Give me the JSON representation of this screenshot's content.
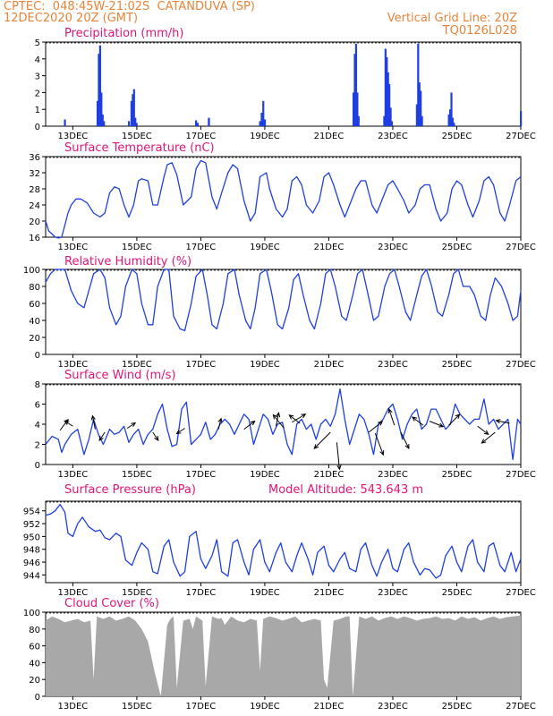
{
  "colors": {
    "header": "#e8843a",
    "panel_title": "#e0157a",
    "series": "#1f3fe0",
    "cloud": "#a8a8a8",
    "axis": "#000000"
  },
  "header": {
    "line1": "CPTEC:  048:45W-21:02S  CATANDUVA (SP)",
    "line2": "12DEC2020 20Z (GMT)",
    "right1": "Vertical Grid Line: 20Z",
    "right2": "TQ0126L028"
  },
  "x_ticks": [
    "13DEC",
    "15DEC",
    "17DEC",
    "19DEC",
    "21DEC",
    "23DEC",
    "25DEC",
    "27DEC"
  ],
  "chart_data": [
    {
      "type": "bar",
      "title": "Precipitation (mm/h)",
      "ylim": [
        0,
        5
      ],
      "yticks": [
        0,
        1,
        2,
        3,
        4,
        5
      ],
      "x_unit": "days since 12DEC 20Z",
      "bars": [
        [
          0.6,
          0.4
        ],
        [
          1.62,
          1.5
        ],
        [
          1.66,
          4.3
        ],
        [
          1.7,
          4.8
        ],
        [
          1.74,
          2.0
        ],
        [
          1.78,
          0.7
        ],
        [
          1.82,
          0.3
        ],
        [
          2.6,
          0.3
        ],
        [
          2.68,
          1.5
        ],
        [
          2.72,
          1.9
        ],
        [
          2.76,
          2.2
        ],
        [
          2.8,
          0.5
        ],
        [
          2.84,
          0.2
        ],
        [
          4.7,
          0.35
        ],
        [
          4.75,
          0.2
        ],
        [
          5.1,
          0.4
        ],
        [
          5.1,
          0.5
        ],
        [
          6.7,
          0.3
        ],
        [
          6.75,
          0.8
        ],
        [
          6.8,
          1.5
        ],
        [
          6.85,
          0.4
        ],
        [
          9.62,
          2.0
        ],
        [
          9.66,
          4.3
        ],
        [
          9.7,
          4.9
        ],
        [
          9.74,
          2.0
        ],
        [
          9.78,
          0.6
        ],
        [
          10.58,
          0.6
        ],
        [
          10.62,
          4.6
        ],
        [
          10.66,
          4.1
        ],
        [
          10.7,
          3.2
        ],
        [
          10.74,
          2.5
        ],
        [
          10.78,
          1.1
        ],
        [
          10.82,
          0.3
        ],
        [
          11.6,
          1.3
        ],
        [
          11.64,
          4.9
        ],
        [
          11.68,
          2.6
        ],
        [
          11.72,
          2.1
        ],
        [
          11.76,
          0.6
        ],
        [
          12.6,
          0.7
        ],
        [
          12.64,
          1.0
        ],
        [
          12.68,
          2.0
        ],
        [
          12.72,
          0.5
        ],
        [
          12.76,
          0.2
        ],
        [
          14.85,
          0.9
        ]
      ]
    },
    {
      "type": "line",
      "title": "Surface Temperature (nC)",
      "ylim": [
        16,
        36
      ],
      "yticks": [
        16,
        20,
        24,
        28,
        32,
        36
      ],
      "x_unit": "days since 12DEC 20Z",
      "x": [
        0,
        0.1,
        0.2,
        0.3,
        0.4,
        0.5,
        0.6,
        0.7,
        0.8,
        0.95,
        1.1,
        1.3,
        1.5,
        1.7,
        1.85,
        2.0,
        2.15,
        2.3,
        2.45,
        2.6,
        2.75,
        2.9,
        3.0,
        3.2,
        3.35,
        3.5,
        3.7,
        3.8,
        3.95,
        4.1,
        4.3,
        4.55,
        4.7,
        4.85,
        5.0,
        5.2,
        5.35,
        5.5,
        5.7,
        5.85,
        6.0,
        6.2,
        6.4,
        6.55,
        6.7,
        6.9,
        7.0,
        7.2,
        7.4,
        7.55,
        7.7,
        7.85,
        8.0,
        8.15,
        8.35,
        8.55,
        8.7,
        8.85,
        9.0,
        9.2,
        9.35,
        9.5,
        9.7,
        9.85,
        10.0,
        10.2,
        10.35,
        10.5,
        10.7,
        10.85,
        11.0,
        11.2,
        11.35,
        11.55,
        11.7,
        11.85,
        12.0,
        12.2,
        12.35,
        12.55,
        12.7,
        12.85,
        13.0,
        13.2,
        13.35,
        13.55,
        13.7,
        13.85,
        14.0,
        14.2,
        14.35,
        14.5,
        14.7,
        14.85
      ],
      "y": [
        20,
        17.5,
        16.8,
        16,
        15.8,
        16,
        19,
        22,
        24,
        25.5,
        25.5,
        24.5,
        22,
        21,
        22,
        27,
        28.5,
        28,
        24,
        21,
        24,
        30,
        30.5,
        30,
        24,
        24,
        31,
        34,
        34.5,
        31.5,
        24,
        26,
        33,
        35,
        34.5,
        26,
        23,
        27,
        32,
        34,
        33,
        25,
        20,
        22,
        31,
        32,
        28,
        23,
        21,
        23,
        30,
        31,
        29,
        24,
        22,
        25,
        31,
        32,
        29,
        24,
        21,
        24,
        28,
        30,
        30,
        24,
        22,
        25,
        29,
        30,
        28,
        25,
        22,
        24,
        28,
        29,
        29,
        23,
        20,
        22,
        28,
        30,
        29,
        24,
        21,
        25,
        30,
        31,
        29,
        22,
        20,
        24,
        30,
        31
      ]
    },
    {
      "type": "line",
      "title": "Relative Humidity (%)",
      "ylim": [
        0,
        100
      ],
      "yticks": [
        0,
        20,
        40,
        60,
        80,
        100
      ],
      "x_unit": "days since 12DEC 20Z",
      "x": [
        0,
        0.15,
        0.3,
        0.45,
        0.6,
        0.8,
        1.0,
        1.2,
        1.35,
        1.5,
        1.7,
        1.85,
        2.0,
        2.2,
        2.35,
        2.5,
        2.7,
        2.85,
        3.0,
        3.2,
        3.35,
        3.5,
        3.7,
        3.85,
        4.0,
        4.2,
        4.35,
        4.55,
        4.7,
        4.9,
        5.05,
        5.2,
        5.35,
        5.55,
        5.7,
        5.9,
        6.05,
        6.25,
        6.4,
        6.55,
        6.7,
        6.9,
        7.05,
        7.25,
        7.4,
        7.6,
        7.75,
        7.9,
        8.05,
        8.25,
        8.4,
        8.6,
        8.75,
        8.9,
        9.05,
        9.25,
        9.4,
        9.6,
        9.75,
        9.9,
        10.05,
        10.25,
        10.4,
        10.6,
        10.75,
        10.9,
        11.05,
        11.25,
        11.4,
        11.6,
        11.75,
        11.9,
        12.05,
        12.25,
        12.4,
        12.6,
        12.75,
        12.9,
        13.05,
        13.25,
        13.4,
        13.6,
        13.75,
        13.9,
        14.05,
        14.25,
        14.45,
        14.6,
        14.75,
        14.85
      ],
      "y": [
        85,
        95,
        100,
        100,
        100,
        75,
        60,
        55,
        75,
        95,
        100,
        90,
        55,
        35,
        45,
        80,
        100,
        95,
        60,
        35,
        35,
        80,
        100,
        100,
        45,
        30,
        28,
        60,
        92,
        100,
        70,
        35,
        30,
        60,
        95,
        100,
        70,
        40,
        30,
        55,
        95,
        100,
        75,
        35,
        30,
        55,
        88,
        95,
        70,
        40,
        30,
        60,
        95,
        100,
        80,
        45,
        40,
        70,
        95,
        100,
        75,
        40,
        45,
        80,
        95,
        100,
        80,
        50,
        40,
        70,
        92,
        100,
        82,
        50,
        45,
        70,
        95,
        100,
        80,
        80,
        70,
        45,
        40,
        70,
        90,
        80,
        60,
        40,
        45,
        75
      ]
    },
    {
      "type": "line",
      "title": "Surface Wind (m/s)",
      "ylim": [
        0,
        8
      ],
      "yticks": [
        0,
        2,
        4,
        6,
        8
      ],
      "x_unit": "days since 12DEC 20Z",
      "x": [
        0,
        0.2,
        0.4,
        0.5,
        0.6,
        0.8,
        1.0,
        1.2,
        1.35,
        1.5,
        1.65,
        1.8,
        2.0,
        2.15,
        2.3,
        2.45,
        2.6,
        2.75,
        2.9,
        3.05,
        3.2,
        3.35,
        3.5,
        3.65,
        3.8,
        3.95,
        4.1,
        4.25,
        4.4,
        4.55,
        4.7,
        4.85,
        5.0,
        5.15,
        5.3,
        5.45,
        5.6,
        5.75,
        5.9,
        6.05,
        6.2,
        6.35,
        6.5,
        6.65,
        6.8,
        6.95,
        7.1,
        7.25,
        7.4,
        7.55,
        7.7,
        7.85,
        8.0,
        8.15,
        8.3,
        8.45,
        8.6,
        8.75,
        8.9,
        9.05,
        9.2,
        9.35,
        9.5,
        9.65,
        9.8,
        9.95,
        10.1,
        10.25,
        10.4,
        10.55,
        10.7,
        10.85,
        11.0,
        11.15,
        11.3,
        11.45,
        11.6,
        11.75,
        11.9,
        12.05,
        12.2,
        12.35,
        12.5,
        12.65,
        12.8,
        12.95,
        13.1,
        13.25,
        13.4,
        13.55,
        13.7,
        13.85,
        14.0,
        14.15,
        14.3,
        14.45,
        14.6,
        14.75,
        14.85
      ],
      "y": [
        2.0,
        2.8,
        2.5,
        1.2,
        2.0,
        3.0,
        3.5,
        1.0,
        2.5,
        4.5,
        3.0,
        2.0,
        3.5,
        3.0,
        3.2,
        3.8,
        2.2,
        3.0,
        3.5,
        2.0,
        3.0,
        3.5,
        5.0,
        6.0,
        3.5,
        1.8,
        2.0,
        5.5,
        6.2,
        2.0,
        2.5,
        3.0,
        4.2,
        2.5,
        3.0,
        4.0,
        4.5,
        4.0,
        3.0,
        4.0,
        5.0,
        4.5,
        2.0,
        3.5,
        5.0,
        4.5,
        3.0,
        4.0,
        4.2,
        2.0,
        1.0,
        4.0,
        4.5,
        3.5,
        4.0,
        2.5,
        4.0,
        4.5,
        3.8,
        5.0,
        7.5,
        4.5,
        2.0,
        3.5,
        5.0,
        4.5,
        3.0,
        1.0,
        4.0,
        4.5,
        5.5,
        6.0,
        4.5,
        2.5,
        4.0,
        5.0,
        5.5,
        3.5,
        4.0,
        5.5,
        5.5,
        4.5,
        3.5,
        4.0,
        6.0,
        5.0,
        4.5,
        4.0,
        4.5,
        4.5,
        6.5,
        4.0,
        4.5,
        3.5,
        4.0,
        4.5,
        0.5,
        4.5,
        4.0
      ],
      "arrows": [
        [
          0.45,
          3.4,
          0.3,
          0.4
        ],
        [
          0.85,
          3.8,
          -0.3,
          0.2
        ],
        [
          1.55,
          3.5,
          -0.1,
          0.5
        ],
        [
          1.85,
          3.2,
          -0.2,
          -0.3
        ],
        [
          2.55,
          3.6,
          0.3,
          0.2
        ],
        [
          3.35,
          3.2,
          0.2,
          -0.3
        ],
        [
          4.35,
          3.6,
          -0.3,
          -0.2
        ],
        [
          5.4,
          3.5,
          0.1,
          0.4
        ],
        [
          6.2,
          3.5,
          0.4,
          0.3
        ],
        [
          7.2,
          3.8,
          0.1,
          0.5
        ],
        [
          7.45,
          3.6,
          -0.4,
          0.5
        ],
        [
          7.95,
          4.1,
          -0.4,
          0.3
        ],
        [
          7.7,
          4.2,
          0.5,
          0.3
        ],
        [
          8.9,
          3.2,
          -0.6,
          -0.6
        ],
        [
          9.1,
          2.2,
          0.1,
          -1.0
        ],
        [
          10.1,
          3.2,
          0.5,
          0.4
        ],
        [
          10.3,
          3.1,
          0.3,
          -0.8
        ],
        [
          10.9,
          3.9,
          -0.2,
          0.6
        ],
        [
          11.1,
          3.2,
          0.3,
          -0.6
        ],
        [
          11.8,
          3.9,
          -0.4,
          0.3
        ],
        [
          12.0,
          4.3,
          0.5,
          -0.2
        ],
        [
          12.6,
          3.9,
          0.4,
          0.4
        ],
        [
          13.5,
          3.8,
          0.4,
          -0.3
        ],
        [
          14.05,
          3.2,
          -0.5,
          -0.4
        ],
        [
          14.5,
          4.1,
          -0.5,
          0.1
        ]
      ]
    },
    {
      "type": "line",
      "title": "Surface Pressure (hPa)",
      "subtitle": "Model Altitude: 543.643 m",
      "ylim": [
        942.8,
        955.5
      ],
      "yticks": [
        944,
        946,
        948,
        950,
        952,
        954
      ],
      "x_unit": "days since 12DEC 20Z",
      "x": [
        0,
        0.15,
        0.3,
        0.45,
        0.6,
        0.7,
        0.85,
        1.0,
        1.15,
        1.35,
        1.55,
        1.7,
        1.85,
        2.0,
        2.2,
        2.35,
        2.5,
        2.7,
        2.85,
        3.0,
        3.2,
        3.35,
        3.5,
        3.7,
        3.85,
        4.0,
        4.2,
        4.35,
        4.5,
        4.7,
        4.85,
        5.0,
        5.2,
        5.35,
        5.5,
        5.7,
        5.85,
        6.0,
        6.2,
        6.35,
        6.5,
        6.7,
        6.85,
        7.0,
        7.2,
        7.35,
        7.5,
        7.7,
        7.85,
        8.0,
        8.2,
        8.35,
        8.5,
        8.7,
        8.85,
        9.0,
        9.2,
        9.35,
        9.5,
        9.7,
        9.85,
        10.0,
        10.2,
        10.35,
        10.5,
        10.7,
        10.85,
        11.0,
        11.2,
        11.35,
        11.5,
        11.7,
        11.85,
        12.0,
        12.2,
        12.35,
        12.5,
        12.7,
        12.85,
        13.0,
        13.2,
        13.35,
        13.5,
        13.7,
        13.85,
        14.0,
        14.2,
        14.35,
        14.55,
        14.7,
        14.85
      ],
      "y": [
        953.3,
        953.5,
        954.0,
        955.0,
        953.8,
        950.5,
        950.0,
        952.0,
        953.0,
        951.5,
        950.8,
        951.0,
        949.8,
        949.5,
        950.5,
        950.0,
        946.3,
        945.5,
        947.5,
        949.0,
        948.0,
        944.5,
        944.2,
        948.5,
        949.5,
        946.0,
        943.8,
        944.5,
        950.0,
        950.8,
        946.5,
        945.0,
        947.0,
        949.5,
        944.5,
        943.8,
        949.0,
        949.5,
        946.0,
        944.0,
        948.0,
        949.5,
        946.0,
        944.5,
        947.5,
        949.0,
        946.0,
        944.5,
        947.0,
        949.0,
        946.5,
        944.0,
        947.5,
        948.5,
        945.5,
        944.5,
        946.5,
        947.5,
        945.0,
        944.5,
        948.0,
        949.0,
        945.5,
        943.8,
        946.0,
        948.0,
        945.0,
        944.5,
        948.0,
        949.0,
        946.0,
        944.0,
        945.0,
        944.8,
        943.5,
        944.0,
        947.0,
        948.5,
        946.0,
        944.5,
        948.5,
        949.5,
        946.0,
        944.5,
        948.5,
        949.0,
        945.5,
        944.5,
        947.5,
        944.5,
        946.5
      ]
    },
    {
      "type": "area",
      "title": "Cloud Cover (%)",
      "ylim": [
        0,
        100
      ],
      "yticks": [
        0,
        20,
        40,
        60,
        80,
        100
      ],
      "x_unit": "days since 12DEC 20Z",
      "x": [
        0,
        0.2,
        0.4,
        0.6,
        0.8,
        1.0,
        1.2,
        1.4,
        1.5,
        1.6,
        1.8,
        2.0,
        2.2,
        2.4,
        2.6,
        2.8,
        3.0,
        3.2,
        3.4,
        3.6,
        3.8,
        3.9,
        4.0,
        4.1,
        4.3,
        4.5,
        4.6,
        4.7,
        4.9,
        5.0,
        5.2,
        5.4,
        5.5,
        5.6,
        5.8,
        6.0,
        6.2,
        6.4,
        6.6,
        6.7,
        6.8,
        7.0,
        7.2,
        7.4,
        7.6,
        7.8,
        8.0,
        8.2,
        8.4,
        8.6,
        8.7,
        8.8,
        9.0,
        9.2,
        9.4,
        9.5,
        9.6,
        9.8,
        10.0,
        10.2,
        10.4,
        10.6,
        10.8,
        11.0,
        11.2,
        11.4,
        11.6,
        11.8,
        12.0,
        12.2,
        12.4,
        12.6,
        12.8,
        13.0,
        13.2,
        13.4,
        13.6,
        13.8,
        14.0,
        14.2,
        14.4,
        14.6,
        14.85
      ],
      "y": [
        90,
        95,
        92,
        88,
        90,
        92,
        88,
        90,
        20,
        95,
        92,
        95,
        90,
        92,
        95,
        90,
        80,
        65,
        30,
        0,
        85,
        92,
        95,
        10,
        90,
        92,
        80,
        95,
        90,
        12,
        95,
        92,
        93,
        85,
        95,
        90,
        88,
        92,
        90,
        30,
        92,
        95,
        93,
        90,
        92,
        95,
        88,
        90,
        92,
        90,
        20,
        10,
        90,
        92,
        95,
        95,
        0,
        95,
        92,
        95,
        90,
        93,
        95,
        92,
        95,
        93,
        90,
        92,
        93,
        95,
        92,
        93,
        90,
        95,
        92,
        94,
        90,
        93,
        95,
        92,
        94,
        95,
        96
      ]
    }
  ]
}
